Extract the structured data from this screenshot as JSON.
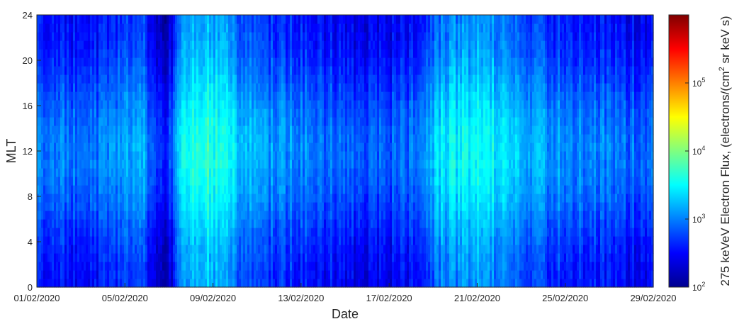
{
  "chart_data": {
    "type": "heatmap",
    "title": "",
    "xlabel": "Date",
    "ylabel": "MLT",
    "x_ticks": [
      "01/02/2020",
      "05/02/2020",
      "09/02/2020",
      "13/02/2020",
      "17/02/2020",
      "21/02/2020",
      "25/02/2020",
      "29/02/2020"
    ],
    "x_range": [
      "01/02/2020",
      "01/03/2020"
    ],
    "y_ticks": [
      "0",
      "4",
      "8",
      "12",
      "16",
      "20",
      "24"
    ],
    "ylim": [
      0,
      24
    ],
    "colorbar": {
      "label": "275 keVeV Electron Flux, (electrons/(cm",
      "label_sup": "2",
      "label_tail": " sr keV s)",
      "scale": "log",
      "range": [
        100,
        1000000
      ],
      "tick_bases": [
        "10",
        "10",
        "10",
        "10"
      ],
      "tick_exponents": [
        "2",
        "3",
        "4",
        "5"
      ],
      "tick_values": [
        100,
        1000,
        10000,
        100000
      ],
      "colormap": "jet"
    },
    "grid": false,
    "daily_flux_profile_log10": [
      {
        "day": 1,
        "level": 2.75
      },
      {
        "day": 2,
        "level": 2.8
      },
      {
        "day": 3,
        "level": 2.7
      },
      {
        "day": 4,
        "level": 2.75
      },
      {
        "day": 5,
        "level": 2.9
      },
      {
        "day": 6,
        "level": 2.95
      },
      {
        "day": 7,
        "level": 2.3
      },
      {
        "day": 8,
        "level": 3.4
      },
      {
        "day": 9,
        "level": 3.5
      },
      {
        "day": 10,
        "level": 3.3
      },
      {
        "day": 11,
        "level": 3.0
      },
      {
        "day": 12,
        "level": 2.9
      },
      {
        "day": 13,
        "level": 2.85
      },
      {
        "day": 14,
        "level": 2.75
      },
      {
        "day": 15,
        "level": 2.7
      },
      {
        "day": 16,
        "level": 2.65
      },
      {
        "day": 17,
        "level": 2.6
      },
      {
        "day": 18,
        "level": 2.7
      },
      {
        "day": 19,
        "level": 2.75
      },
      {
        "day": 20,
        "level": 3.2
      },
      {
        "day": 21,
        "level": 3.25
      },
      {
        "day": 22,
        "level": 3.3
      },
      {
        "day": 23,
        "level": 3.2
      },
      {
        "day": 24,
        "level": 3.0
      },
      {
        "day": 25,
        "level": 2.9
      },
      {
        "day": 26,
        "level": 2.85
      },
      {
        "day": 27,
        "level": 2.8
      },
      {
        "day": 28,
        "level": 2.75
      },
      {
        "day": 29,
        "level": 2.7
      }
    ]
  }
}
